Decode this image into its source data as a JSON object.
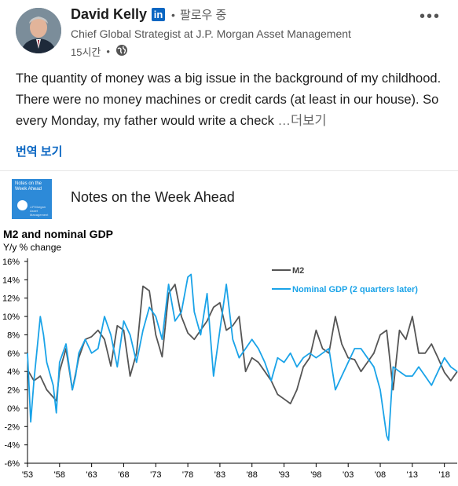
{
  "post": {
    "author": "David Kelly",
    "linkedin_badge": "in",
    "follow_label": "팔로우 중",
    "headline": "Chief Global Strategist at J.P. Morgan Asset Management",
    "time": "15시간",
    "body_text": "The quantity of money was a big issue in the background of my childhood. There were no money machines or credit cards (at least in our house). So every Monday, my father would write a check",
    "see_more": "…더보기",
    "translate_label": "번역 보기"
  },
  "article": {
    "thumb_title": "Notes on the Week Ahead",
    "thumb_small": "J.P.Morgan Asset Management",
    "title": "Notes on the Week Ahead"
  },
  "icons": {
    "more": "more-horizontal-icon",
    "visibility": "globe-icon",
    "thumb": "document-icon"
  },
  "colors": {
    "m2": "#555555",
    "gdp": "#1aa3e8",
    "linkedin": "#0a66c2"
  },
  "chart_data": {
    "type": "line",
    "title": "M2 and nominal GDP",
    "ylabel": "Y/y % change",
    "ylim": [
      -6,
      16
    ],
    "y_ticks": [
      "16%",
      "14%",
      "12%",
      "10%",
      "8%",
      "6%",
      "4%",
      "2%",
      "0%",
      "-2%",
      "-4%",
      "-6%"
    ],
    "x_ticks": [
      "'53",
      "'58",
      "'63",
      "'68",
      "'73",
      "'78",
      "'83",
      "'88",
      "'93",
      "'98",
      "'03",
      "'08",
      "'13",
      "'18"
    ],
    "xlim": [
      1953,
      2020
    ],
    "grid": false,
    "legend_position": "top-right",
    "series": [
      {
        "name": "M2",
        "x": [
          1953,
          1954,
          1955,
          1956,
          1957,
          1957.5,
          1958,
          1959,
          1960,
          1961,
          1962,
          1963,
          1964,
          1965,
          1966,
          1967,
          1968,
          1969,
          1970,
          1971,
          1972,
          1973,
          1974,
          1975,
          1976,
          1977,
          1978,
          1979,
          1980,
          1981,
          1982,
          1983,
          1984,
          1985,
          1986,
          1987,
          1988,
          1989,
          1990,
          1991,
          1992,
          1993,
          1994,
          1995,
          1996,
          1997,
          1998,
          1999,
          2000,
          2001,
          2002,
          2003,
          2004,
          2005,
          2006,
          2007,
          2008,
          2009,
          2010,
          2011,
          2012,
          2013,
          2014,
          2015,
          2016,
          2017,
          2018,
          2019,
          2020
        ],
        "values": [
          4.2,
          3.0,
          3.5,
          2.0,
          1.2,
          0.8,
          4.0,
          6.5,
          2.0,
          5.5,
          7.5,
          7.8,
          8.5,
          7.5,
          4.6,
          9.0,
          8.5,
          3.5,
          6.0,
          13.3,
          12.8,
          8.0,
          5.6,
          12.5,
          13.5,
          10.0,
          8.2,
          7.5,
          8.5,
          9.5,
          11.0,
          11.5,
          8.5,
          9.0,
          10.0,
          4.0,
          5.5,
          5.0,
          4.0,
          3.0,
          1.5,
          1.0,
          0.5,
          2.0,
          4.5,
          5.5,
          8.5,
          6.5,
          6.0,
          10.0,
          7.0,
          5.5,
          5.3,
          4.0,
          5.0,
          6.0,
          8.0,
          8.5,
          2.0,
          8.5,
          7.5,
          10.0,
          6.0,
          6.0,
          7.0,
          5.5,
          3.9,
          3.0,
          4.0
        ]
      },
      {
        "name": "Nominal GDP (2 quarters later)",
        "x": [
          1953,
          1953.5,
          1954,
          1955,
          1955.5,
          1956,
          1957,
          1957.5,
          1958,
          1959,
          1960,
          1960.5,
          1961,
          1962,
          1963,
          1964,
          1965,
          1966,
          1967,
          1968,
          1969,
          1970,
          1971,
          1972,
          1973,
          1974,
          1975,
          1976,
          1977,
          1978,
          1978.5,
          1979,
          1980,
          1981,
          1982,
          1983,
          1984,
          1985,
          1986,
          1987,
          1988,
          1989,
          1990,
          1991,
          1992,
          1993,
          1994,
          1995,
          1996,
          1997,
          1998,
          1999,
          2000,
          2001,
          2002,
          2003,
          2004,
          2005,
          2006,
          2007,
          2008,
          2009,
          2009.3,
          2010,
          2011,
          2012,
          2013,
          2014,
          2015,
          2016,
          2017,
          2018,
          2019,
          2020
        ],
        "values": [
          6.0,
          -1.5,
          3.0,
          10.0,
          8.0,
          5.0,
          2.5,
          -0.5,
          5.0,
          7.0,
          2.0,
          3.5,
          6.0,
          7.5,
          6.0,
          6.5,
          10.0,
          8.0,
          4.5,
          9.5,
          8.0,
          5.0,
          8.5,
          11.0,
          10.0,
          7.5,
          13.5,
          9.5,
          10.5,
          14.3,
          14.6,
          10.5,
          8.0,
          12.5,
          3.5,
          8.5,
          13.5,
          7.5,
          5.5,
          6.5,
          7.5,
          6.5,
          5.0,
          3.0,
          5.5,
          5.0,
          6.0,
          4.5,
          5.5,
          6.0,
          5.5,
          6.0,
          6.5,
          2.0,
          3.5,
          5.0,
          6.5,
          6.5,
          5.5,
          4.5,
          2.0,
          -3.0,
          -3.5,
          4.5,
          4.0,
          3.5,
          3.5,
          4.5,
          3.5,
          2.5,
          4.0,
          5.5,
          4.5,
          4.0
        ]
      }
    ]
  }
}
